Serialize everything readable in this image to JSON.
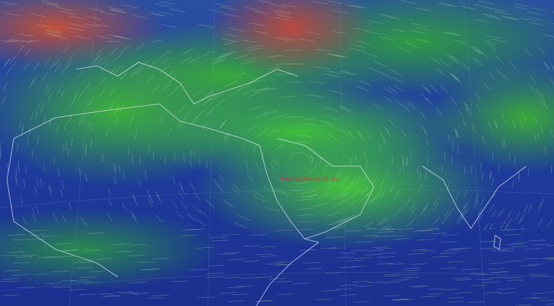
{
  "map": {
    "type": "animated wind streamline map",
    "colors": {
      "calm": "#1e3c9c",
      "moderate": "#3fbf3a",
      "strong": "#c0503a",
      "coastline": "#e8f0ff",
      "graticule": "#8ea0d8"
    },
    "center_label": "Red Carbon as of .Su"
  }
}
